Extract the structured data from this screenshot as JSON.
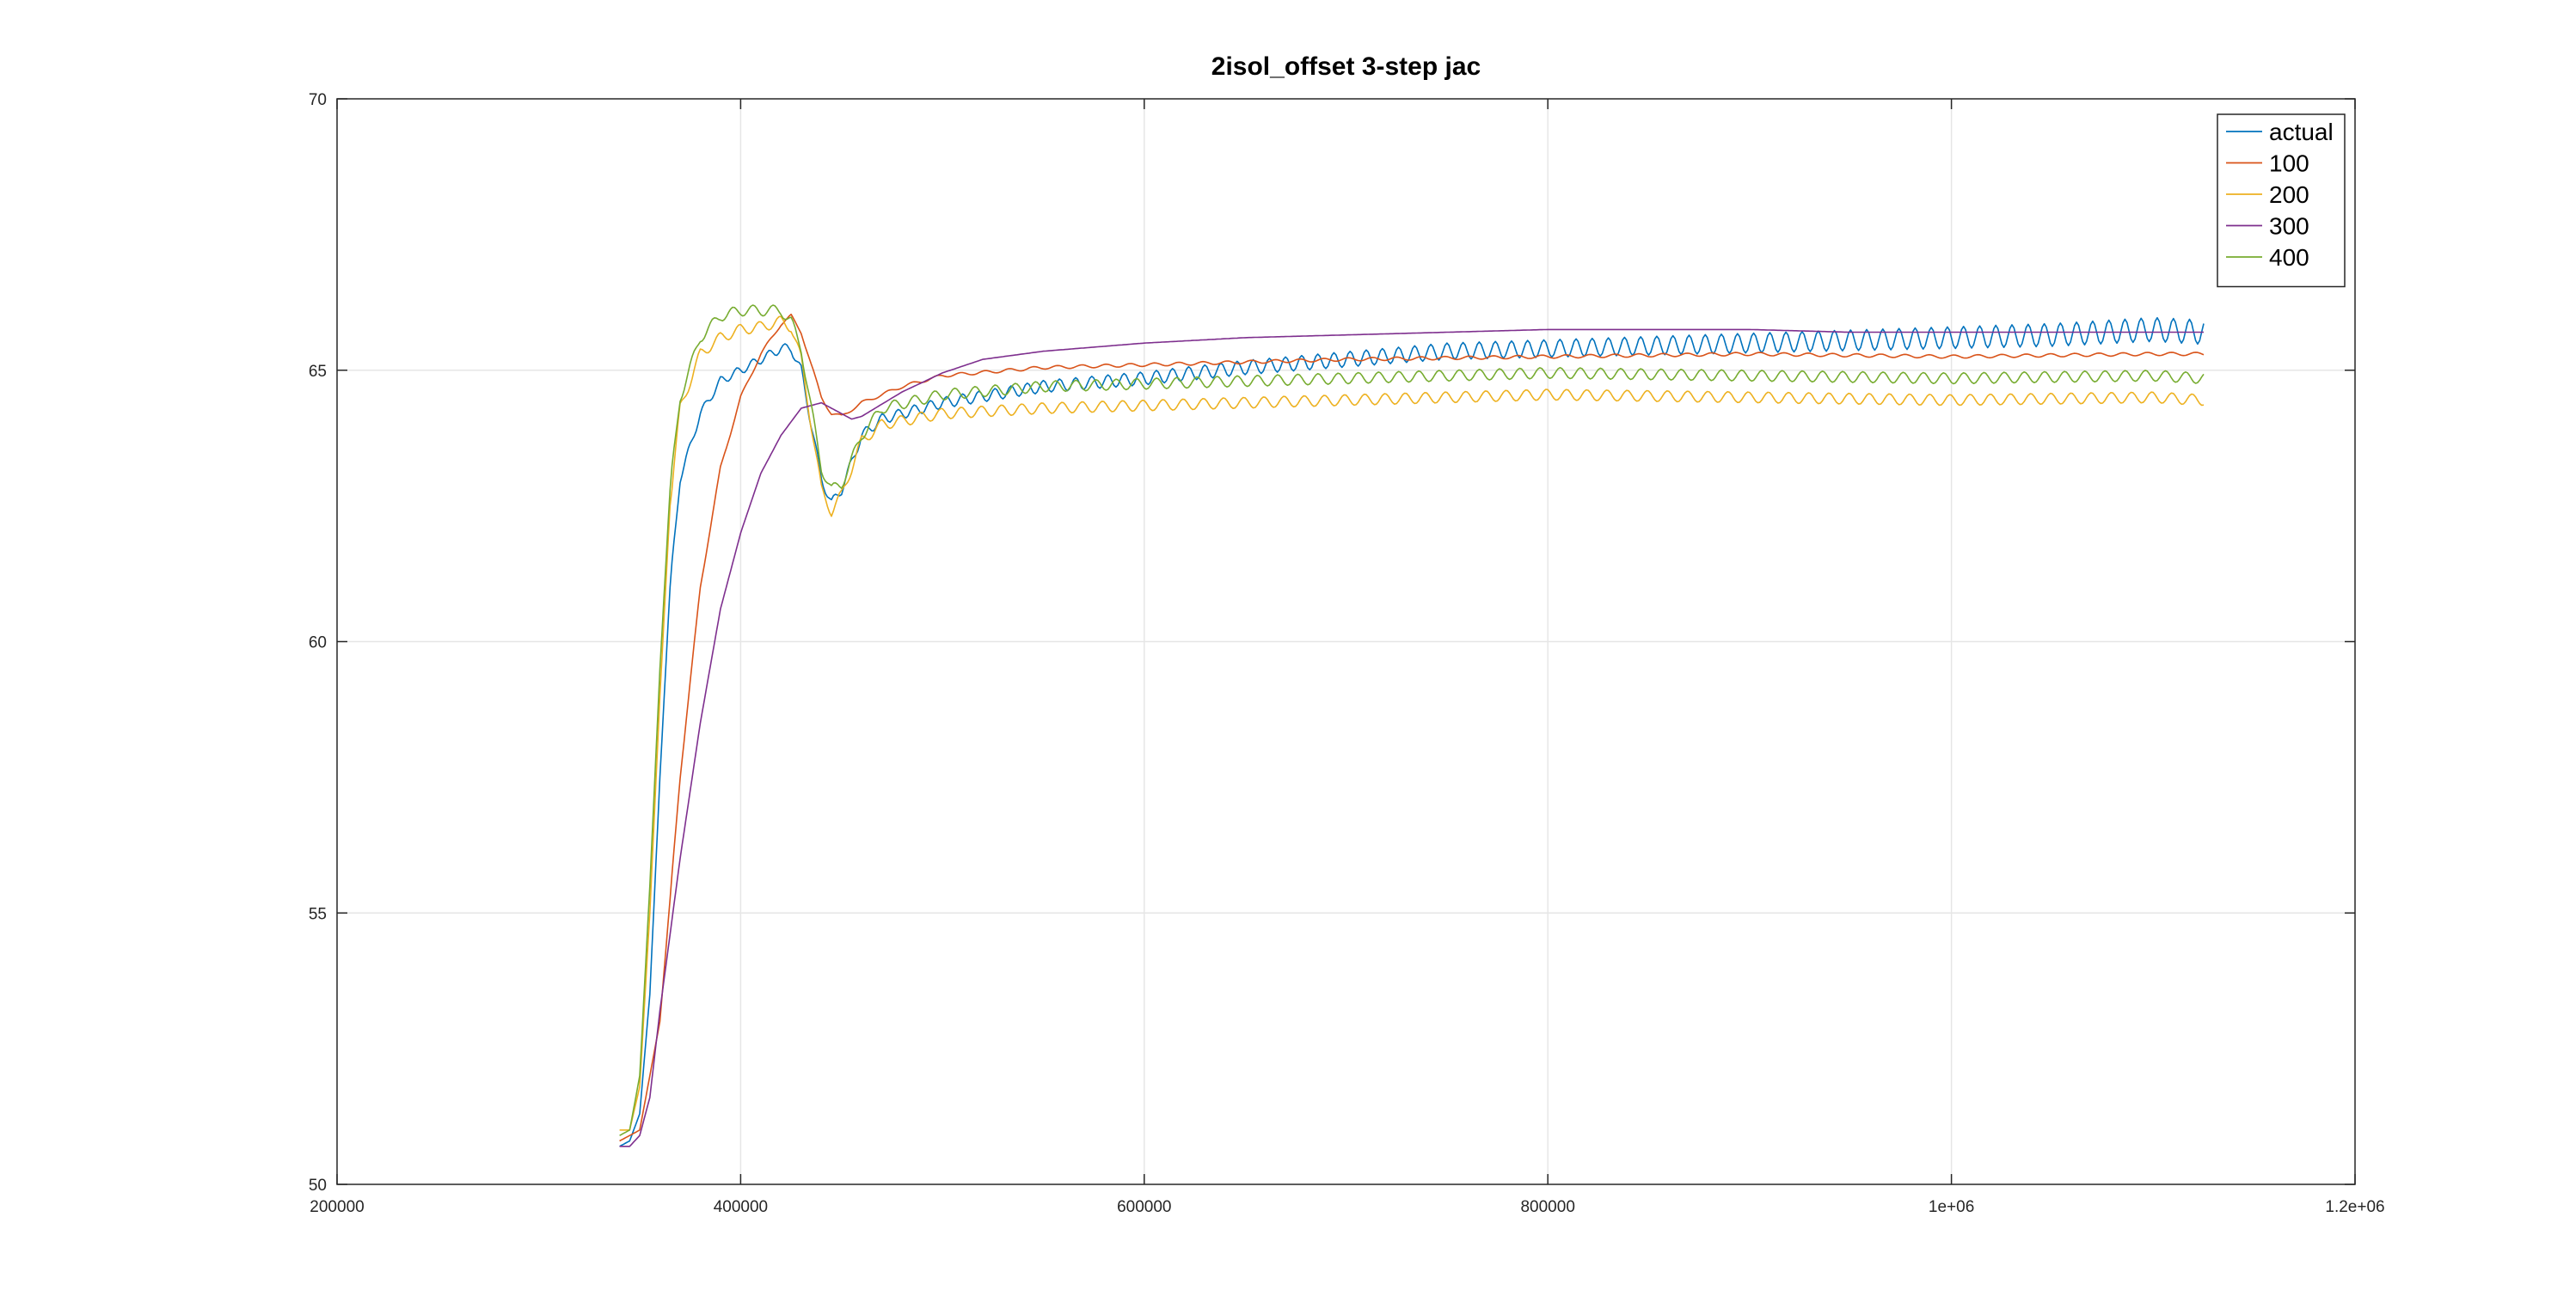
{
  "chart_data": {
    "type": "line",
    "title": "2isol_offset 3-step jac",
    "xlabel": "",
    "ylabel": "",
    "xlim": [
      200000,
      1200000
    ],
    "ylim": [
      50,
      70
    ],
    "xticks": [
      200000,
      400000,
      600000,
      800000,
      1000000,
      1200000
    ],
    "xtick_labels": [
      "200000",
      "400000",
      "600000",
      "800000",
      "1e+06",
      "1.2e+06"
    ],
    "yticks": [
      50,
      55,
      60,
      65,
      70
    ],
    "ytick_labels": [
      "50",
      "55",
      "60",
      "65",
      "70"
    ],
    "grid": true,
    "legend_position": "top-right",
    "series": [
      {
        "name": "actual",
        "color": "#0072BD",
        "osc_amp": 0.15,
        "osc_period": 8000,
        "osc_grow": true,
        "points": [
          [
            340000,
            50.7
          ],
          [
            345000,
            50.8
          ],
          [
            350000,
            51.3
          ],
          [
            355000,
            53.5
          ],
          [
            360000,
            57.5
          ],
          [
            365000,
            61.0
          ],
          [
            370000,
            63.0
          ],
          [
            380000,
            64.2
          ],
          [
            390000,
            64.8
          ],
          [
            400000,
            65.0
          ],
          [
            410000,
            65.2
          ],
          [
            420000,
            65.4
          ],
          [
            425000,
            65.4
          ],
          [
            430000,
            65.0
          ],
          [
            435000,
            64.0
          ],
          [
            440000,
            63.0
          ],
          [
            445000,
            62.55
          ],
          [
            450000,
            62.8
          ],
          [
            460000,
            63.8
          ],
          [
            470000,
            64.1
          ],
          [
            500000,
            64.4
          ],
          [
            550000,
            64.7
          ],
          [
            600000,
            64.85
          ],
          [
            650000,
            65.05
          ],
          [
            700000,
            65.2
          ],
          [
            750000,
            65.35
          ],
          [
            800000,
            65.4
          ],
          [
            850000,
            65.45
          ],
          [
            900000,
            65.5
          ],
          [
            950000,
            65.55
          ],
          [
            1000000,
            65.6
          ],
          [
            1050000,
            65.65
          ],
          [
            1100000,
            65.75
          ],
          [
            1125000,
            65.7
          ]
        ]
      },
      {
        "name": "100",
        "color": "#D95319",
        "osc_amp": 0.03,
        "osc_period": 12000,
        "osc_grow": false,
        "points": [
          [
            340000,
            50.8
          ],
          [
            350000,
            51.0
          ],
          [
            360000,
            53.0
          ],
          [
            370000,
            57.5
          ],
          [
            380000,
            61.0
          ],
          [
            390000,
            63.2
          ],
          [
            400000,
            64.5
          ],
          [
            410000,
            65.3
          ],
          [
            420000,
            65.85
          ],
          [
            425000,
            66.0
          ],
          [
            430000,
            65.7
          ],
          [
            435000,
            65.1
          ],
          [
            440000,
            64.5
          ],
          [
            445000,
            64.2
          ],
          [
            450000,
            64.15
          ],
          [
            460000,
            64.4
          ],
          [
            480000,
            64.7
          ],
          [
            500000,
            64.9
          ],
          [
            550000,
            65.05
          ],
          [
            600000,
            65.1
          ],
          [
            650000,
            65.15
          ],
          [
            700000,
            65.2
          ],
          [
            800000,
            65.25
          ],
          [
            900000,
            65.3
          ],
          [
            1000000,
            65.25
          ],
          [
            1100000,
            65.3
          ],
          [
            1125000,
            65.3
          ]
        ]
      },
      {
        "name": "200",
        "color": "#EDB120",
        "osc_amp": 0.1,
        "osc_period": 10000,
        "osc_grow": false,
        "points": [
          [
            340000,
            51.0
          ],
          [
            345000,
            51.0
          ],
          [
            350000,
            51.8
          ],
          [
            355000,
            55.0
          ],
          [
            360000,
            59.0
          ],
          [
            365000,
            62.5
          ],
          [
            370000,
            64.3
          ],
          [
            380000,
            65.3
          ],
          [
            390000,
            65.6
          ],
          [
            400000,
            65.75
          ],
          [
            410000,
            65.8
          ],
          [
            420000,
            65.9
          ],
          [
            425000,
            65.8
          ],
          [
            430000,
            65.2
          ],
          [
            435000,
            64.0
          ],
          [
            440000,
            62.8
          ],
          [
            445000,
            62.4
          ],
          [
            450000,
            62.7
          ],
          [
            460000,
            63.7
          ],
          [
            470000,
            64.0
          ],
          [
            500000,
            64.2
          ],
          [
            550000,
            64.3
          ],
          [
            600000,
            64.35
          ],
          [
            700000,
            64.45
          ],
          [
            800000,
            64.55
          ],
          [
            900000,
            64.5
          ],
          [
            1000000,
            64.45
          ],
          [
            1100000,
            64.5
          ],
          [
            1125000,
            64.45
          ]
        ]
      },
      {
        "name": "300",
        "color": "#7E2F8E",
        "osc_amp": 0.0,
        "osc_period": 10000,
        "osc_grow": false,
        "points": [
          [
            340000,
            50.7
          ],
          [
            345000,
            50.7
          ],
          [
            350000,
            50.9
          ],
          [
            355000,
            51.6
          ],
          [
            360000,
            53.2
          ],
          [
            370000,
            56.0
          ],
          [
            380000,
            58.5
          ],
          [
            390000,
            60.6
          ],
          [
            400000,
            62.0
          ],
          [
            410000,
            63.1
          ],
          [
            420000,
            63.8
          ],
          [
            430000,
            64.3
          ],
          [
            440000,
            64.4
          ],
          [
            450000,
            64.2
          ],
          [
            455000,
            64.1
          ],
          [
            460000,
            64.15
          ],
          [
            480000,
            64.6
          ],
          [
            500000,
            64.95
          ],
          [
            520000,
            65.2
          ],
          [
            550000,
            65.35
          ],
          [
            600000,
            65.5
          ],
          [
            650000,
            65.6
          ],
          [
            700000,
            65.65
          ],
          [
            750000,
            65.7
          ],
          [
            800000,
            65.75
          ],
          [
            850000,
            65.75
          ],
          [
            900000,
            65.75
          ],
          [
            950000,
            65.7
          ],
          [
            1000000,
            65.7
          ],
          [
            1050000,
            65.7
          ],
          [
            1100000,
            65.7
          ],
          [
            1125000,
            65.7
          ]
        ]
      },
      {
        "name": "400",
        "color": "#77AC30",
        "osc_amp": 0.1,
        "osc_period": 10000,
        "osc_grow": false,
        "points": [
          [
            340000,
            50.9
          ],
          [
            345000,
            51.0
          ],
          [
            350000,
            52.0
          ],
          [
            355000,
            55.5
          ],
          [
            360000,
            59.5
          ],
          [
            365000,
            62.8
          ],
          [
            370000,
            64.5
          ],
          [
            380000,
            65.6
          ],
          [
            390000,
            66.0
          ],
          [
            400000,
            66.1
          ],
          [
            410000,
            66.1
          ],
          [
            420000,
            66.1
          ],
          [
            425000,
            65.9
          ],
          [
            430000,
            65.4
          ],
          [
            435000,
            64.3
          ],
          [
            440000,
            63.2
          ],
          [
            445000,
            62.8
          ],
          [
            450000,
            62.9
          ],
          [
            460000,
            63.8
          ],
          [
            470000,
            64.3
          ],
          [
            500000,
            64.55
          ],
          [
            550000,
            64.7
          ],
          [
            600000,
            64.75
          ],
          [
            700000,
            64.85
          ],
          [
            800000,
            64.95
          ],
          [
            900000,
            64.9
          ],
          [
            1000000,
            64.85
          ],
          [
            1100000,
            64.9
          ],
          [
            1125000,
            64.85
          ]
        ]
      }
    ]
  }
}
